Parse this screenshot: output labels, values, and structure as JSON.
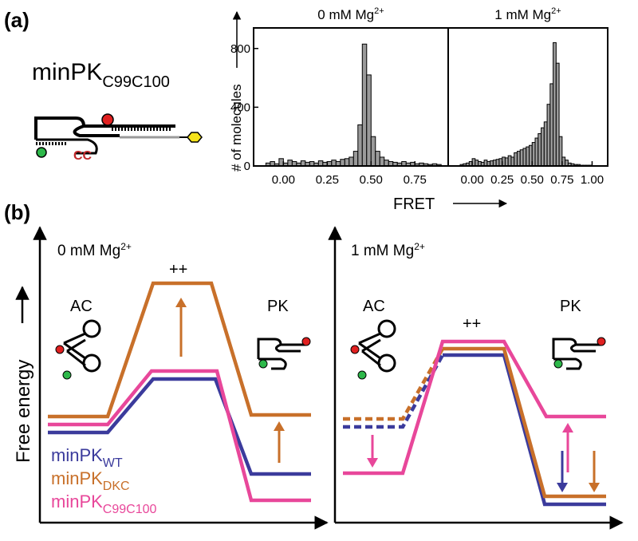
{
  "panel_labels": [
    "(a)",
    "(b)"
  ],
  "construct": {
    "name": "minPK",
    "subscript": "C99C100",
    "mutation": "CC"
  },
  "chart_data": [
    {
      "type": "histogram",
      "title": "0 mM Mg",
      "title_sup": "2+",
      "ylabel": "# of molecules",
      "xlabel": "FRET",
      "bins": [
        -0.1,
        -0.075,
        -0.05,
        -0.025,
        0,
        0.025,
        0.05,
        0.075,
        0.1,
        0.125,
        0.15,
        0.175,
        0.2,
        0.225,
        0.25,
        0.275,
        0.3,
        0.325,
        0.35,
        0.375,
        0.4,
        0.425,
        0.45,
        0.475,
        0.5,
        0.525,
        0.55,
        0.575,
        0.6,
        0.625,
        0.65,
        0.675,
        0.7,
        0.725,
        0.75,
        0.775,
        0.8,
        0.825,
        0.85,
        0.875,
        0.9
      ],
      "values": [
        20,
        30,
        15,
        50,
        20,
        40,
        30,
        20,
        35,
        25,
        30,
        20,
        35,
        25,
        30,
        40,
        30,
        45,
        50,
        60,
        100,
        280,
        830,
        620,
        200,
        100,
        60,
        40,
        30,
        25,
        20,
        30,
        20,
        25,
        15,
        20,
        15,
        10,
        15,
        10
      ],
      "xlim": [
        -0.17,
        0.94
      ],
      "ylim": [
        0,
        940
      ],
      "xticks": [
        {
          "value": 0,
          "label": "0.00"
        },
        0.25,
        {
          "value": 0.5,
          "label": "0.50"
        },
        0.75
      ],
      "yticks": [
        0,
        400,
        800
      ]
    },
    {
      "type": "histogram",
      "title": "1 mM Mg",
      "title_sup": "2+",
      "bins": [
        -0.1,
        -0.075,
        -0.05,
        -0.025,
        0,
        0.025,
        0.05,
        0.075,
        0.1,
        0.125,
        0.15,
        0.175,
        0.2,
        0.225,
        0.25,
        0.275,
        0.3,
        0.325,
        0.35,
        0.375,
        0.4,
        0.425,
        0.45,
        0.475,
        0.5,
        0.525,
        0.55,
        0.575,
        0.6,
        0.625,
        0.65,
        0.675,
        0.7,
        0.725,
        0.75,
        0.775,
        0.8,
        0.825,
        0.85,
        0.875,
        0.9,
        0.925,
        0.95,
        0.975,
        1.0
      ],
      "values": [
        10,
        15,
        20,
        30,
        50,
        40,
        30,
        25,
        40,
        30,
        35,
        40,
        45,
        50,
        60,
        55,
        70,
        60,
        90,
        100,
        110,
        120,
        130,
        140,
        160,
        190,
        220,
        260,
        300,
        420,
        560,
        840,
        700,
        200,
        60,
        40,
        20,
        15,
        10,
        10,
        5,
        5,
        5,
        5
      ],
      "xlim": [
        -0.2,
        1.13
      ],
      "ylim": [
        0,
        940
      ],
      "xticks": [
        {
          "value": 0,
          "label": "0.00"
        },
        0.25,
        {
          "value": 0.5,
          "label": "0.50"
        },
        0.75,
        {
          "value": 1,
          "label": "1.00"
        }
      ]
    }
  ],
  "energy": {
    "ylabel": "Free energy",
    "panels": [
      {
        "title": "0 mM Mg",
        "title_sup": "2+",
        "states": [
          "AC",
          "++",
          "PK"
        ]
      },
      {
        "title": "1 mM Mg",
        "title_sup": "2+",
        "states": [
          "AC",
          "++",
          "PK"
        ]
      }
    ],
    "legend": [
      {
        "name": "minPK",
        "subscript": "WT",
        "color": "#3b3b9c"
      },
      {
        "name": "minPK",
        "subscript": "DKC",
        "color": "#c8702a"
      },
      {
        "name": "minPK",
        "subscript": "C99C100",
        "color": "#e8479a"
      }
    ]
  }
}
